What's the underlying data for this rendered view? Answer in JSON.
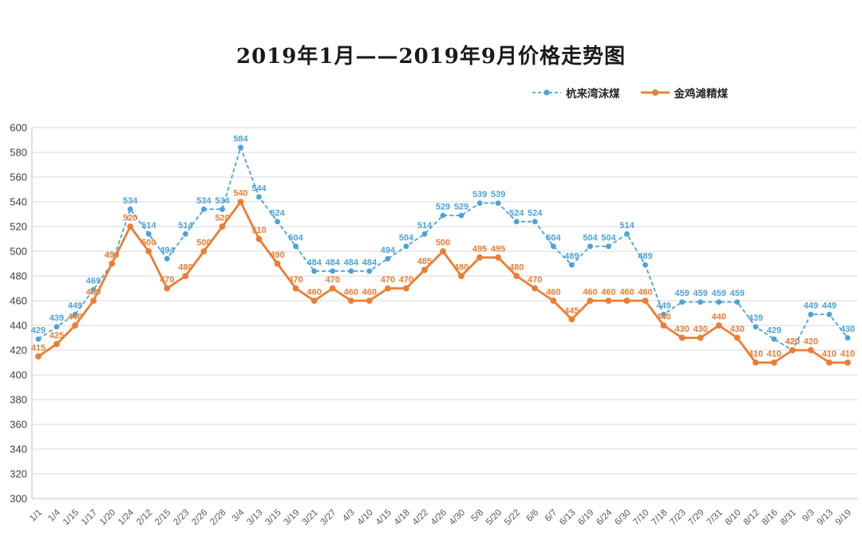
{
  "title": "2019年1月——2019年9月价格走势图",
  "legend": [
    {
      "label": "杭来湾沫煤",
      "color": "#4BA3DB",
      "style": "dashed"
    },
    {
      "label": "金鸡滩精煤",
      "color": "#ED7D31",
      "style": "solid"
    }
  ],
  "colors": {
    "gridline": "#D9D9D9",
    "axis": "#BFBFBF",
    "tick_text": "#595959",
    "ytick_text": "#404040"
  },
  "chart_data": {
    "type": "line",
    "title": "2019年1月——2019年9月价格走势图",
    "categories": [
      "1/1",
      "1/4",
      "1/15",
      "1/17",
      "1/20",
      "1/24",
      "2/12",
      "2/15",
      "2/23",
      "2/26",
      "2/28",
      "3/4",
      "3/13",
      "3/15",
      "3/19",
      "3/21",
      "3/27",
      "4/3",
      "4/10",
      "4/15",
      "4/18",
      "4/22",
      "4/26",
      "4/30",
      "5/8",
      "5/20",
      "5/22",
      "6/6",
      "6/7",
      "6/13",
      "6/19",
      "6/24",
      "6/30",
      "7/10",
      "7/18",
      "7/23",
      "7/29",
      "7/31",
      "8/10",
      "8/12",
      "8/16",
      "8/31",
      "9/3",
      "9/13",
      "9/19"
    ],
    "series": [
      {
        "name": "杭来湾沫煤",
        "color": "#4BA3DB",
        "line": "dashed",
        "values": [
          429,
          439,
          449,
          469,
          490,
          534,
          514,
          494,
          514,
          534,
          534,
          584,
          544,
          524,
          504,
          484,
          484,
          484,
          484,
          494,
          504,
          514,
          529,
          529,
          539,
          539,
          524,
          524,
          504,
          489,
          504,
          504,
          514,
          489,
          449,
          459,
          459,
          459,
          459,
          439,
          429,
          420,
          449,
          449,
          430
        ]
      },
      {
        "name": "金鸡滩精煤",
        "color": "#ED7D31",
        "line": "solid",
        "values": [
          415,
          425,
          440,
          460,
          490,
          520,
          500,
          470,
          480,
          500,
          520,
          540,
          510,
          490,
          470,
          460,
          470,
          460,
          460,
          470,
          470,
          485,
          500,
          480,
          495,
          495,
          480,
          470,
          460,
          445,
          460,
          460,
          460,
          460,
          440,
          430,
          430,
          440,
          430,
          410,
          410,
          420,
          420,
          410,
          410
        ]
      }
    ],
    "xlabel": "",
    "ylabel": "",
    "ylim": [
      300,
      600
    ],
    "ytick_step": 20,
    "grid": true,
    "legend_position": "top-right",
    "data_labels": true
  }
}
